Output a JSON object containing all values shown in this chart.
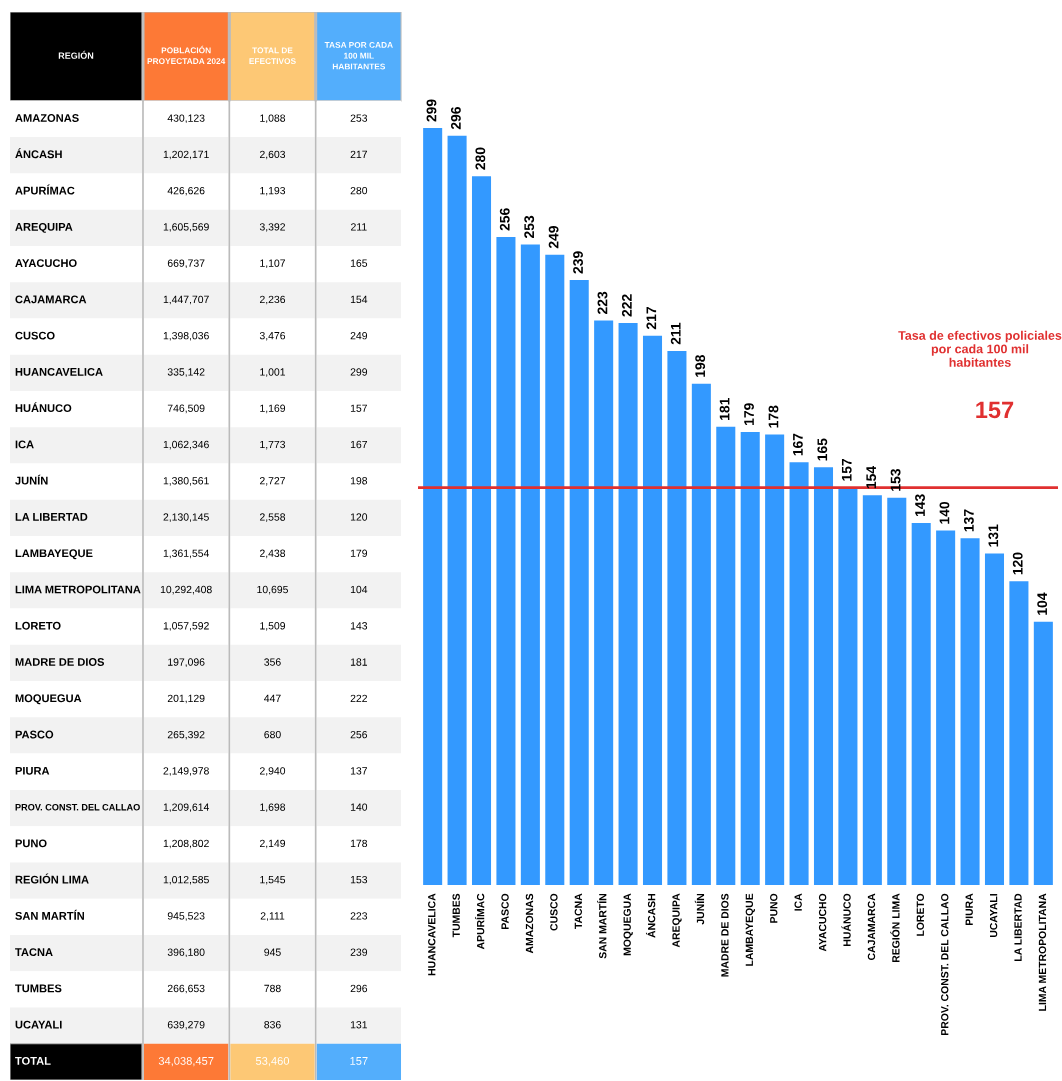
{
  "chart_data": [
    {
      "type": "heatmap",
      "ylabel": "REGIÓN",
      "categories": [
        "POBLACIÓN\nPROYECTADA 2024",
        "TOTAL DE\nEFECTIVOS",
        "TASA POR CADA\n100 MIL\nHABITANTES"
      ],
      "colors": [
        "#fd7936",
        "#fdc875",
        "#53aefc"
      ],
      "y_categories": [
        "AMAZONAS",
        "ÁNCASH",
        "APURÍMAC",
        "AREQUIPA",
        "AYACUCHO",
        "CAJAMARCA",
        "CUSCO",
        "HUANCAVELICA",
        "HUÁNUCO",
        "ICA",
        "JUNÍN",
        "LA LIBERTAD",
        "LAMBAYEQUE",
        "LIMA METROPOLITANA",
        "LORETO",
        "MADRE DE DIOS",
        "MOQUEGUA",
        "PASCO",
        "PIURA",
        "PROV. CONST. DEL CALLAO",
        "PUNO",
        "REGIÓN LIMA",
        "SAN MARTÍN",
        "TACNA",
        "TUMBES",
        "UCAYALI",
        "TOTAL"
      ],
      "cells": [
        [
          "430,123",
          "1,088",
          "253"
        ],
        [
          "1,202,171",
          "2,603",
          "217"
        ],
        [
          "426,626",
          "1,193",
          "280"
        ],
        [
          "1,605,569",
          "3,392",
          "211"
        ],
        [
          "669,737",
          "1,107",
          "165"
        ],
        [
          "1,447,707",
          "2,236",
          "154"
        ],
        [
          "1,398,036",
          "3,476",
          "249"
        ],
        [
          "335,142",
          "1,001",
          "299"
        ],
        [
          "746,509",
          "1,169",
          "157"
        ],
        [
          "1,062,346",
          "1,773",
          "167"
        ],
        [
          "1,380,561",
          "2,727",
          "198"
        ],
        [
          "2,130,145",
          "2,558",
          "120"
        ],
        [
          "1,361,554",
          "2,438",
          "179"
        ],
        [
          "10,292,408",
          "10,695",
          "104"
        ],
        [
          "1,057,592",
          "1,509",
          "143"
        ],
        [
          "197,096",
          "356",
          "181"
        ],
        [
          "201,129",
          "447",
          "222"
        ],
        [
          "265,392",
          "680",
          "256"
        ],
        [
          "2,149,978",
          "2,940",
          "137"
        ],
        [
          "1,209,614",
          "1,698",
          "140"
        ],
        [
          "1,208,802",
          "2,149",
          "178"
        ],
        [
          "1,012,585",
          "1,545",
          "153"
        ],
        [
          "945,523",
          "2,111",
          "223"
        ],
        [
          "396,180",
          "945",
          "239"
        ],
        [
          "266,653",
          "788",
          "296"
        ],
        [
          "639,279",
          "836",
          "131"
        ],
        [
          "34,038,457",
          "53,460",
          "157"
        ]
      ]
    },
    {
      "type": "bar",
      "color": "#3399ff",
      "data_labels": true,
      "categories": [
        "HUANCAVELICA",
        "TUMBES",
        "APURÍMAC",
        "PASCO",
        "AMAZONAS",
        "CUSCO",
        "TACNA",
        "SAN MARTÍN",
        "MOQUEGUA",
        "ÁNCASH",
        "AREQUIPA",
        "JUNÍN",
        "MADRE DE DIOS",
        "LAMBAYEQUE",
        "PUNO",
        "ICA",
        "AYACUCHO",
        "HUÁNUCO",
        "CAJAMARCA",
        "REGIÓN LIMA",
        "LORETO",
        "PROV. CONST. DEL CALLAO",
        "PIURA",
        "UCAYALI",
        "LA LIBERTAD",
        "LIMA METROPOLITANA"
      ],
      "values": [
        299,
        296,
        280,
        256,
        253,
        249,
        239,
        223,
        222,
        217,
        211,
        198,
        181,
        179,
        178,
        167,
        165,
        157,
        154,
        153,
        143,
        140,
        137,
        131,
        120,
        104
      ],
      "ref_lines": [
        {
          "axis": "y",
          "value": 157,
          "label": "157",
          "color": "#e03030"
        }
      ],
      "annotations": [
        "Tasa de efectivos policiales por cada 100 mil habitantes"
      ]
    }
  ]
}
